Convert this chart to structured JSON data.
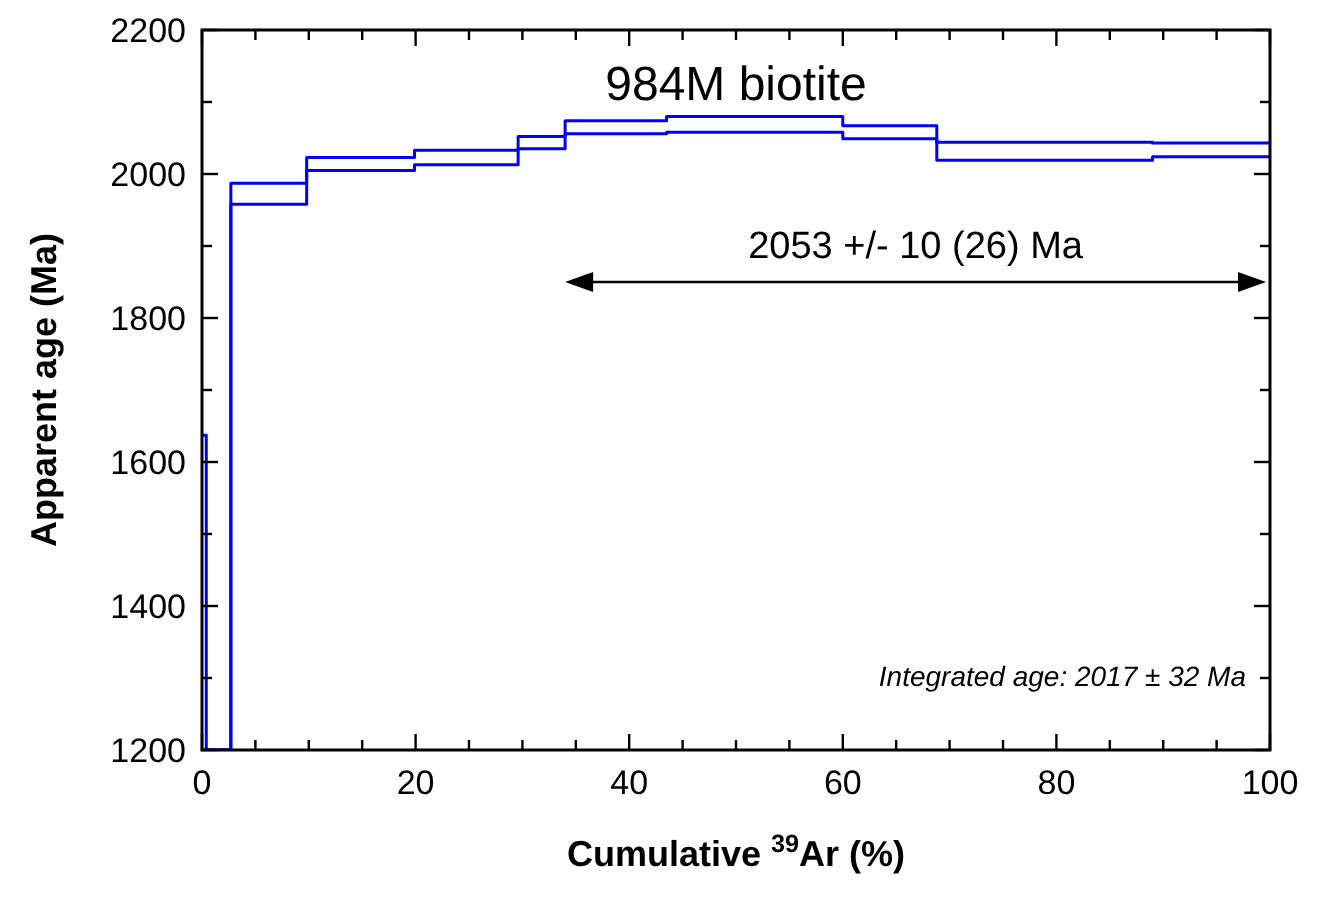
{
  "chart_data": {
    "type": "step",
    "title": "984M biotite",
    "xlabel": "Cumulative $^{39}$Ar (%)",
    "ylabel": "Apparent age (Ma)",
    "x": [
      0,
      0.4,
      2.7,
      9.8,
      19.9,
      29.6,
      34.0,
      43.5,
      60.0,
      68.8,
      89.0,
      100
    ],
    "series": [
      {
        "color": "#0000ff",
        "values": [
          1637,
          1200,
          1987,
          2023,
          2033,
          2052,
          2074,
          2080,
          2067,
          2044,
          2043,
          2043
        ]
      },
      {
        "color": "#0000ff",
        "values": [
          1200,
          1200,
          1958,
          2005,
          2013,
          2035,
          2056,
          2058,
          2049,
          2019,
          2024,
          2024
        ]
      }
    ],
    "xlim": [
      0,
      100
    ],
    "ylim": [
      1200,
      2200
    ],
    "xticks": [
      0,
      {
        "value": 5,
        "label": null
      },
      {
        "value": 10,
        "label": null
      },
      {
        "value": 15,
        "label": null
      },
      20,
      {
        "value": 25,
        "label": null
      },
      {
        "value": 30,
        "label": null
      },
      {
        "value": 35,
        "label": null
      },
      40,
      {
        "value": 45,
        "label": null
      },
      {
        "value": 50,
        "label": null
      },
      {
        "value": 55,
        "label": null
      },
      60,
      {
        "value": 65,
        "label": null
      },
      {
        "value": 70,
        "label": null
      },
      {
        "value": 75,
        "label": null
      },
      80,
      {
        "value": 85,
        "label": null
      },
      {
        "value": 90,
        "label": null
      },
      {
        "value": 95,
        "label": null
      },
      100
    ],
    "yticks": [
      1200,
      {
        "value": 1300,
        "label": null
      },
      1400,
      {
        "value": 1500,
        "label": null
      },
      1600,
      {
        "value": 1700,
        "label": null
      },
      1800,
      {
        "value": 1900,
        "label": null
      },
      2000,
      {
        "value": 2100,
        "label": null
      },
      2200
    ],
    "annotations": [
      "2053 +/- 10 (26) Ma",
      "Integrated age: 2017 ± 32 Ma"
    ],
    "grid": false,
    "line_style": "solid",
    "marker": "none"
  }
}
